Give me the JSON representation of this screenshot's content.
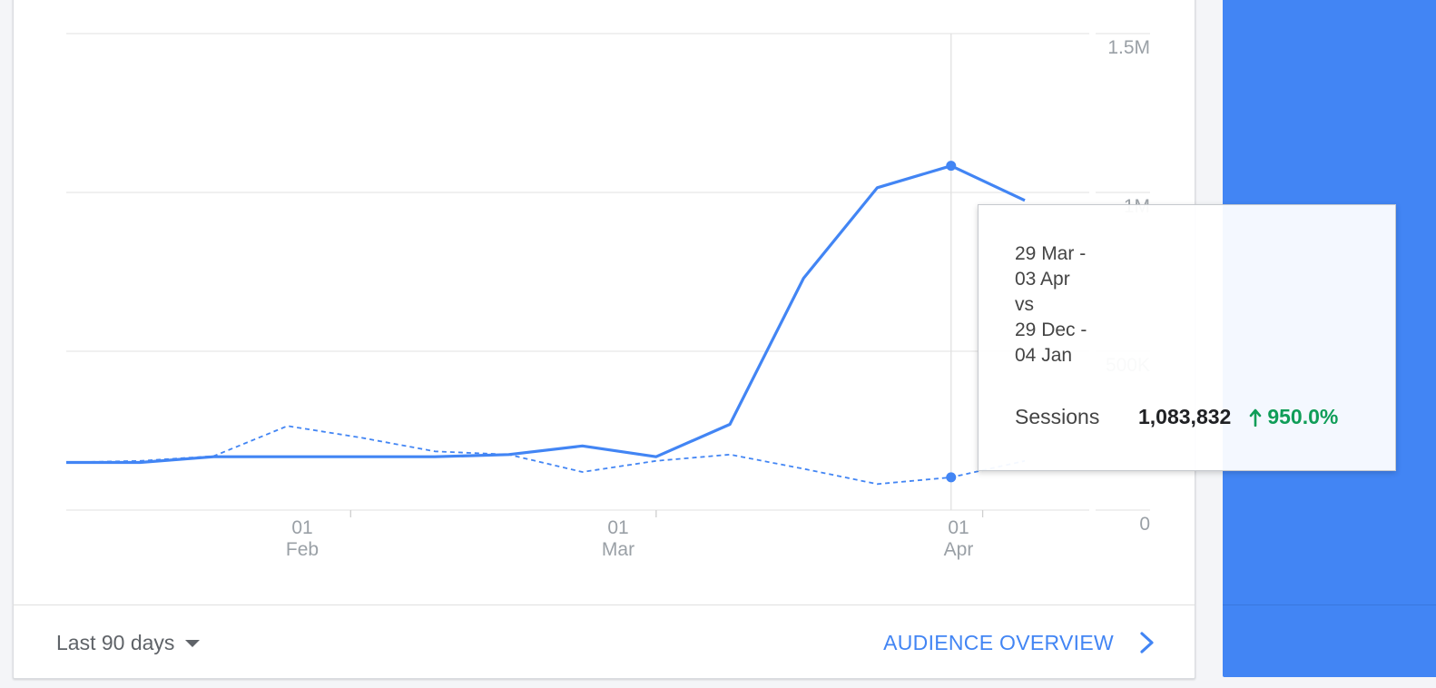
{
  "chart_data": {
    "type": "line",
    "x_ticks": [
      {
        "day": "01",
        "month": "Feb"
      },
      {
        "day": "01",
        "month": "Mar"
      },
      {
        "day": "01",
        "month": "Apr"
      }
    ],
    "y_ticks": [
      "0",
      "500K",
      "1M",
      "1.5M"
    ],
    "ylim": [
      0,
      1500000
    ],
    "grid": true,
    "series": [
      {
        "style": "solid",
        "color": "#4285f4",
        "points": [
          {
            "x": "2020-01-05",
            "y": 150000
          },
          {
            "x": "2020-01-12",
            "y": 150000
          },
          {
            "x": "2020-01-19",
            "y": 168000
          },
          {
            "x": "2020-01-26",
            "y": 168000
          },
          {
            "x": "2020-02-02",
            "y": 168000
          },
          {
            "x": "2020-02-09",
            "y": 168000
          },
          {
            "x": "2020-02-16",
            "y": 175000
          },
          {
            "x": "2020-02-23",
            "y": 202000
          },
          {
            "x": "2020-03-01",
            "y": 168000
          },
          {
            "x": "2020-03-08",
            "y": 270000
          },
          {
            "x": "2020-03-15",
            "y": 730000
          },
          {
            "x": "2020-03-22",
            "y": 1015000
          },
          {
            "x": "2020-03-29",
            "y": 1083832
          },
          {
            "x": "2020-04-05",
            "y": 975000
          }
        ]
      },
      {
        "style": "dashed",
        "color": "#4285f4",
        "points": [
          {
            "x": "2020-01-05",
            "y": 150000
          },
          {
            "x": "2020-01-12",
            "y": 155000
          },
          {
            "x": "2020-01-19",
            "y": 170000
          },
          {
            "x": "2020-01-26",
            "y": 265000
          },
          {
            "x": "2020-02-02",
            "y": 228000
          },
          {
            "x": "2020-02-09",
            "y": 185000
          },
          {
            "x": "2020-02-16",
            "y": 175000
          },
          {
            "x": "2020-02-23",
            "y": 120000
          },
          {
            "x": "2020-03-01",
            "y": 155000
          },
          {
            "x": "2020-03-08",
            "y": 175000
          },
          {
            "x": "2020-03-15",
            "y": 130000
          },
          {
            "x": "2020-03-22",
            "y": 82000
          },
          {
            "x": "2020-03-29",
            "y": 103222
          },
          {
            "x": "2020-04-05",
            "y": 155000
          }
        ]
      }
    ],
    "highlight_x": "2020-03-29"
  },
  "tooltip": {
    "date_lines": [
      "29 Mar -",
      "03 Apr",
      "vs",
      "29 Dec -",
      "04 Jan"
    ],
    "metric_name": "Sessions",
    "metric_value": "1,083,832",
    "change": "950.0%"
  },
  "footer": {
    "date_range": "Last 90 days",
    "report_link": "AUDIENCE OVERVIEW"
  },
  "icons": {
    "dropdown": "caret-down-icon",
    "link": "chevron-right-icon",
    "change": "arrow-up-icon"
  },
  "colors": {
    "accent": "#4285f4",
    "positive": "#0f9d58"
  }
}
